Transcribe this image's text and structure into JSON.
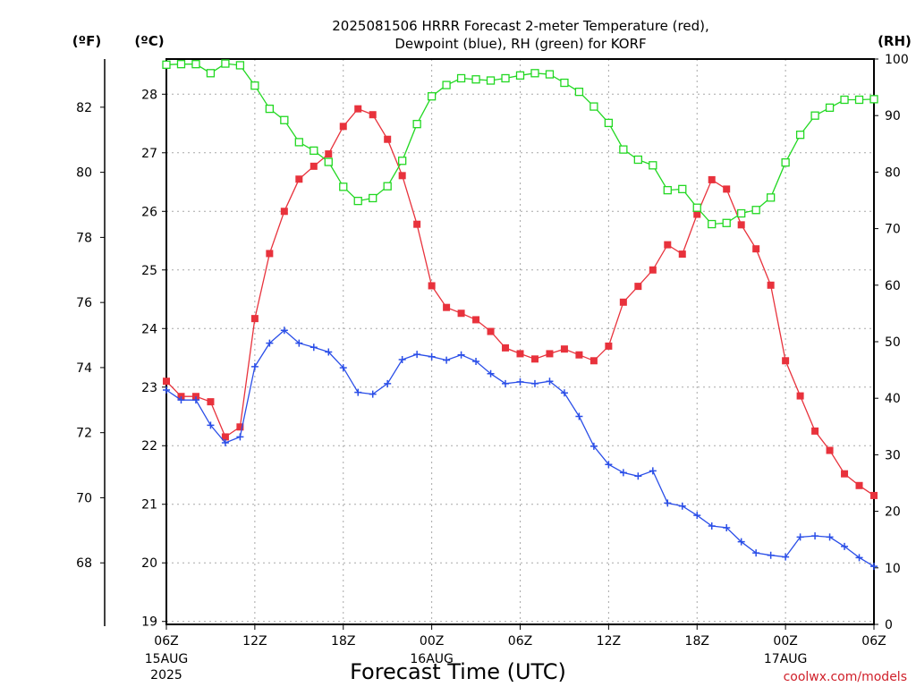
{
  "chart_data": {
    "type": "line",
    "title_line1": "2025081506 HRRR Forecast 2-meter Temperature (red),",
    "title_line2": "Dewpoint (blue), RH (green) for KORF",
    "xlabel": "Forecast Time (UTC)",
    "unit_f": "(ºF)",
    "unit_c": "(ºC)",
    "unit_rh": "(RH)",
    "credit": "coolwx.com/models",
    "x_hours": [
      6,
      7,
      8,
      9,
      10,
      11,
      12,
      13,
      14,
      15,
      16,
      17,
      18,
      19,
      20,
      21,
      22,
      23,
      24,
      25,
      26,
      27,
      28,
      29,
      30,
      31,
      32,
      33,
      34,
      35,
      36,
      37,
      38,
      39,
      40,
      41,
      42,
      43,
      44,
      45,
      46,
      47,
      48,
      49,
      50,
      51,
      52,
      53,
      54
    ],
    "xlim": [
      6,
      54
    ],
    "x_ticks": [
      {
        "hour": 6,
        "label": "06Z",
        "label2": "15AUG",
        "label3": "2025"
      },
      {
        "hour": 12,
        "label": "12Z",
        "label2": "",
        "label3": ""
      },
      {
        "hour": 18,
        "label": "18Z",
        "label2": "",
        "label3": ""
      },
      {
        "hour": 24,
        "label": "00Z",
        "label2": "16AUG",
        "label3": ""
      },
      {
        "hour": 30,
        "label": "06Z",
        "label2": "",
        "label3": ""
      },
      {
        "hour": 36,
        "label": "12Z",
        "label2": "",
        "label3": ""
      },
      {
        "hour": 42,
        "label": "18Z",
        "label2": "",
        "label3": ""
      },
      {
        "hour": 48,
        "label": "00Z",
        "label2": "17AUG",
        "label3": ""
      },
      {
        "hour": 54,
        "label": "06Z",
        "label2": "",
        "label3": ""
      }
    ],
    "celsius_ticks": [
      "19",
      "20",
      "21",
      "22",
      "23",
      "24",
      "25",
      "26",
      "27",
      "28"
    ],
    "fahrenheit_ticks": [
      "68",
      "70",
      "72",
      "74",
      "76",
      "78",
      "80",
      "82"
    ],
    "rh_ticks": [
      "0",
      "10",
      "20",
      "30",
      "40",
      "50",
      "60",
      "70",
      "80",
      "90",
      "100"
    ],
    "ylim_celsius": [
      18.95,
      28.6
    ],
    "ylim_rh": [
      0,
      100
    ],
    "grid": true,
    "series": [
      {
        "name": "2-meter Temperature",
        "color": "#e8323c",
        "marker": "filled-square",
        "axis": "celsius",
        "values": [
          23.1,
          22.84,
          22.84,
          22.75,
          22.15,
          22.32,
          24.17,
          25.28,
          26.0,
          26.55,
          26.77,
          26.98,
          27.45,
          27.75,
          27.65,
          27.23,
          26.61,
          25.78,
          24.73,
          24.36,
          24.26,
          24.15,
          23.95,
          23.67,
          23.57,
          23.48,
          23.57,
          23.65,
          23.55,
          23.45,
          23.7,
          24.45,
          24.72,
          25.0,
          25.43,
          25.27,
          25.95,
          26.54,
          26.38,
          25.77,
          25.36,
          24.74,
          23.45,
          22.85,
          22.25,
          21.92,
          21.52,
          21.32,
          21.15
        ]
      },
      {
        "name": "Dewpoint",
        "color": "#2a4ee8",
        "marker": "plus",
        "axis": "celsius",
        "values": [
          22.95,
          22.78,
          22.78,
          22.35,
          22.05,
          22.15,
          23.35,
          23.75,
          23.97,
          23.75,
          23.68,
          23.6,
          23.33,
          22.91,
          22.88,
          23.06,
          23.47,
          23.56,
          23.52,
          23.46,
          23.55,
          23.44,
          23.23,
          23.06,
          23.09,
          23.06,
          23.1,
          22.9,
          22.5,
          21.99,
          21.68,
          21.54,
          21.48,
          21.57,
          21.02,
          20.97,
          20.81,
          20.63,
          20.6,
          20.36,
          20.17,
          20.13,
          20.1,
          20.44,
          20.46,
          20.44,
          20.28,
          20.09,
          19.94
        ]
      },
      {
        "name": "RH",
        "color": "#22d822",
        "marker": "open-square",
        "axis": "rh",
        "values": [
          99.0,
          99.1,
          99.1,
          97.5,
          99.2,
          98.9,
          95.3,
          91.2,
          89.2,
          85.3,
          83.8,
          81.8,
          77.4,
          74.9,
          75.4,
          77.5,
          82.0,
          88.5,
          93.4,
          95.4,
          96.6,
          96.4,
          96.2,
          96.6,
          97.1,
          97.5,
          97.3,
          95.8,
          94.2,
          91.6,
          88.7,
          84.0,
          82.2,
          81.2,
          76.8,
          77.0,
          73.7,
          70.8,
          71.0,
          72.7,
          73.3,
          75.5,
          81.7,
          86.6,
          90.0,
          91.4,
          92.8,
          92.8,
          92.9
        ]
      }
    ]
  }
}
